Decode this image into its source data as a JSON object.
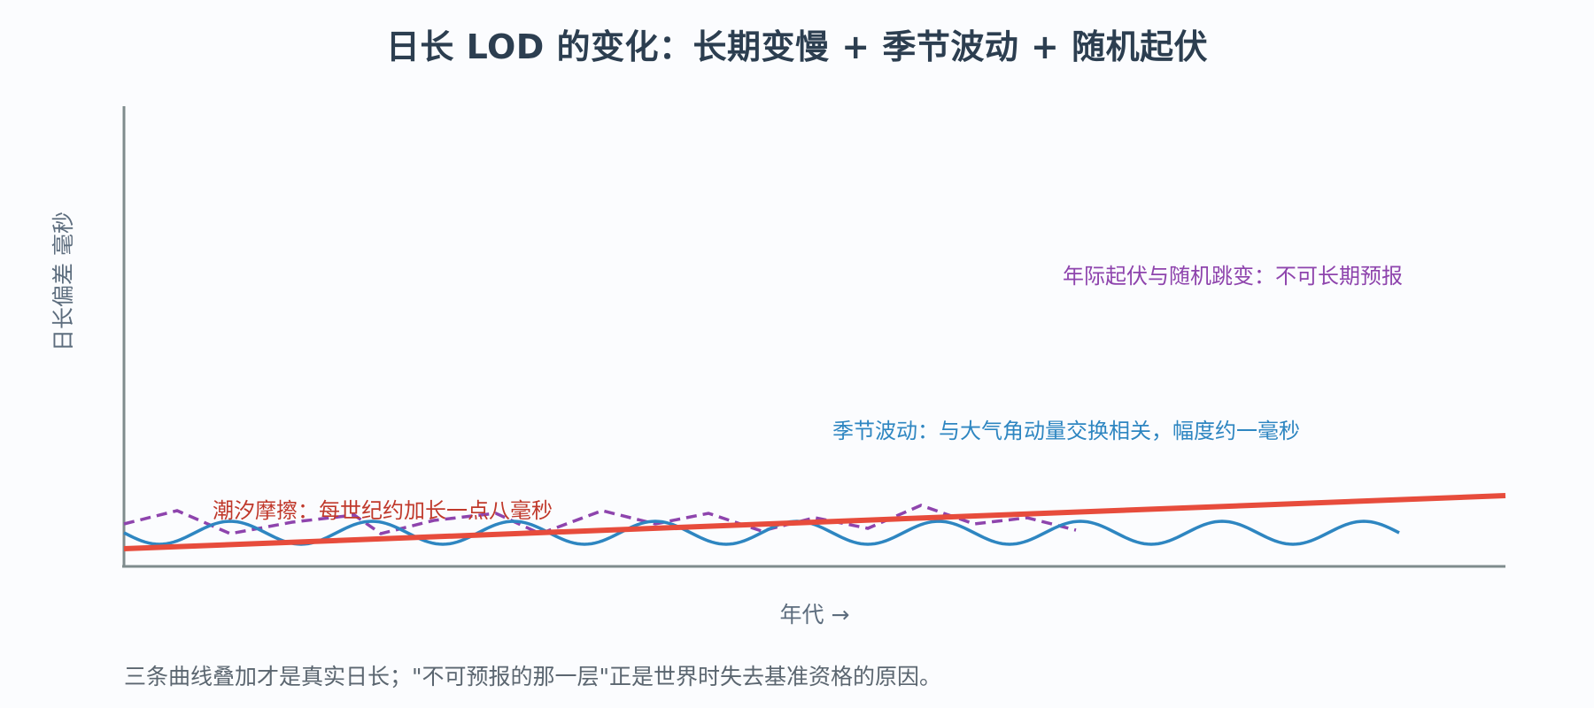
{
  "title": "日长 LOD 的变化：长期变慢 + 季节波动 + 随机起伏",
  "diagram": {
    "y_axis_label": "日长偏差 毫秒",
    "x_axis_label": "年代 →",
    "labels": {
      "irregular": "年际起伏与随机跳变：不可长期预报",
      "seasonal": "季节波动：与大气角动量交换相关，幅度约一毫秒",
      "tidal": "潮汐摩擦：每世纪约加长一点八毫秒"
    },
    "colors": {
      "tidal": "#e74c3c",
      "seasonal": "#2e86c1",
      "irregular": "#8e44ad",
      "axis": "#7f8c8d",
      "axis_label": "#5d6d7e",
      "title": "#2c3e50"
    }
  },
  "footnote": "三条曲线叠加才是真实日长；\"不可预报的那一层\"正是世界时失去基准资格的原因。"
}
